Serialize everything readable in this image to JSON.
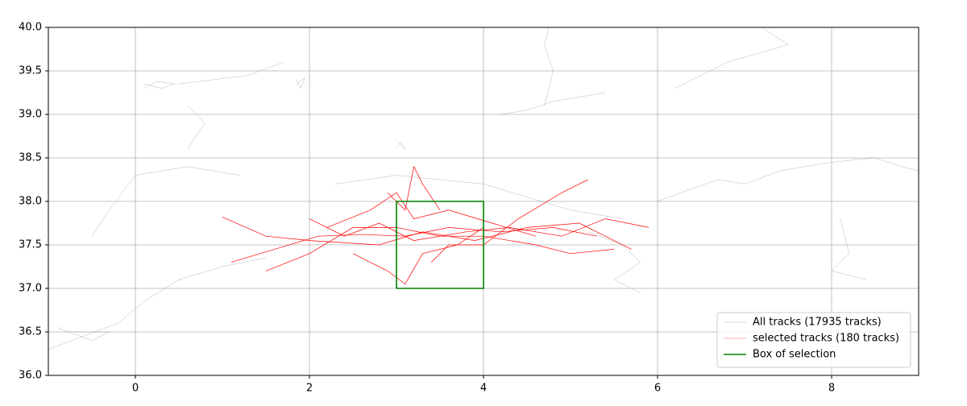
{
  "chart_data": {
    "type": "line",
    "xlim": [
      -1,
      9
    ],
    "ylim": [
      36,
      40
    ],
    "xticks": [
      0,
      2,
      4,
      6,
      8
    ],
    "yticks": [
      {
        "value": 36,
        "label": "36.0"
      },
      36.5,
      {
        "value": 37,
        "label": "37.0"
      },
      37.5,
      {
        "value": 38,
        "label": "38.0"
      },
      38.5,
      {
        "value": 39,
        "label": "39.0"
      },
      39.5,
      {
        "value": 40,
        "label": "40.0"
      }
    ],
    "grid": true,
    "legend": "lower right",
    "series": [
      {
        "name": "All tracks (17935 tracks)",
        "color": "#808080",
        "x": [
          -1,
          -0.6,
          -0.2,
          0.1,
          0.5,
          1.0,
          1.5,
          null,
          -0.9,
          -0.5,
          -0.3,
          -0.7,
          null,
          0.1,
          0.3,
          0.45,
          0.25,
          0.1,
          null,
          0.5,
          0.9,
          1.3,
          1.7,
          null,
          1.85,
          1.95,
          1.9,
          1.85,
          null,
          3.0,
          3.1,
          3.05,
          3.0,
          null,
          4.2,
          4.5,
          4.8,
          5.1,
          5.4,
          null,
          4.7,
          4.8,
          4.7,
          4.75,
          null,
          6.0,
          6.4,
          6.7,
          7.0,
          7.4,
          8.0,
          8.5,
          8.8,
          9.0,
          null,
          5.2,
          5.6,
          5.8,
          5.5,
          5.8,
          null,
          -0.5,
          -0.3,
          0,
          0.6,
          1.2,
          null,
          8.1,
          8.2,
          8.0,
          8.4,
          null,
          6.2,
          6.8,
          7.5,
          7.2,
          null,
          2.3,
          3.0,
          4.0,
          5.0,
          5.6,
          null,
          0.6,
          0.8,
          0.6
        ],
        "values": [
          36.3,
          36.45,
          36.6,
          36.85,
          37.1,
          37.25,
          37.35,
          null,
          36.55,
          36.4,
          36.5,
          36.5,
          null,
          39.35,
          39.3,
          39.35,
          39.38,
          39.3,
          null,
          39.35,
          39.4,
          39.45,
          39.6,
          null,
          39.35,
          39.42,
          39.3,
          39.4,
          null,
          38.7,
          38.6,
          38.68,
          38.62,
          null,
          39.0,
          39.05,
          39.15,
          39.2,
          39.25,
          null,
          39.1,
          39.5,
          39.8,
          40.0,
          null,
          38.0,
          38.15,
          38.25,
          38.2,
          38.35,
          38.45,
          38.5,
          38.4,
          38.35,
          null,
          37.65,
          37.5,
          37.3,
          37.1,
          36.95,
          null,
          37.6,
          37.9,
          38.3,
          38.4,
          38.3,
          null,
          37.8,
          37.4,
          37.2,
          37.1,
          null,
          39.3,
          39.6,
          39.8,
          40.0,
          null,
          38.2,
          38.3,
          38.2,
          37.9,
          37.8,
          null,
          38.6,
          38.9,
          39.1
        ]
      },
      {
        "name": "selected tracks (180 tracks)",
        "color": "#ff0000",
        "x": [
          1.1,
          1.6,
          2.1,
          2.6,
          3.1,
          3.6,
          4.2,
          4.8,
          5.3,
          null,
          1.0,
          1.5,
          2.0,
          2.8,
          3.3,
          3.9,
          4.5,
          5.1,
          5.7,
          null,
          2.2,
          2.7,
          3.0,
          3.2,
          3.6,
          4.1,
          4.6,
          null,
          2.5,
          2.9,
          3.1,
          3.3,
          3.7,
          4.0,
          null,
          1.5,
          2.0,
          2.5,
          3.0,
          3.5,
          4.0,
          4.6,
          5.0,
          5.5,
          null,
          2.9,
          3.1,
          3.2,
          3.3,
          3.5,
          null,
          3.4,
          3.6,
          4.0,
          4.4,
          4.9,
          5.2,
          null,
          2.0,
          2.4,
          2.8,
          3.2,
          3.8,
          4.3,
          4.9,
          5.4,
          5.9
        ],
        "values": [
          37.3,
          37.45,
          37.6,
          37.62,
          37.6,
          37.7,
          37.65,
          37.7,
          37.6,
          null,
          37.82,
          37.6,
          37.55,
          37.5,
          37.65,
          37.55,
          37.7,
          37.75,
          37.45,
          null,
          37.7,
          37.9,
          38.1,
          37.8,
          37.9,
          37.75,
          37.6,
          null,
          37.4,
          37.2,
          37.05,
          37.4,
          37.5,
          37.7,
          null,
          37.2,
          37.4,
          37.7,
          37.7,
          37.6,
          37.6,
          37.5,
          37.4,
          37.45,
          null,
          38.1,
          37.9,
          38.4,
          38.2,
          37.9,
          null,
          37.3,
          37.5,
          37.5,
          37.8,
          38.1,
          38.25,
          null,
          37.8,
          37.6,
          37.75,
          37.55,
          37.65,
          37.7,
          37.6,
          37.8,
          37.7
        ]
      },
      {
        "name": "Box of selection",
        "color": "#008000",
        "x": [
          3,
          3,
          4,
          4,
          3
        ],
        "values": [
          37,
          38,
          38,
          37,
          37
        ]
      }
    ]
  }
}
